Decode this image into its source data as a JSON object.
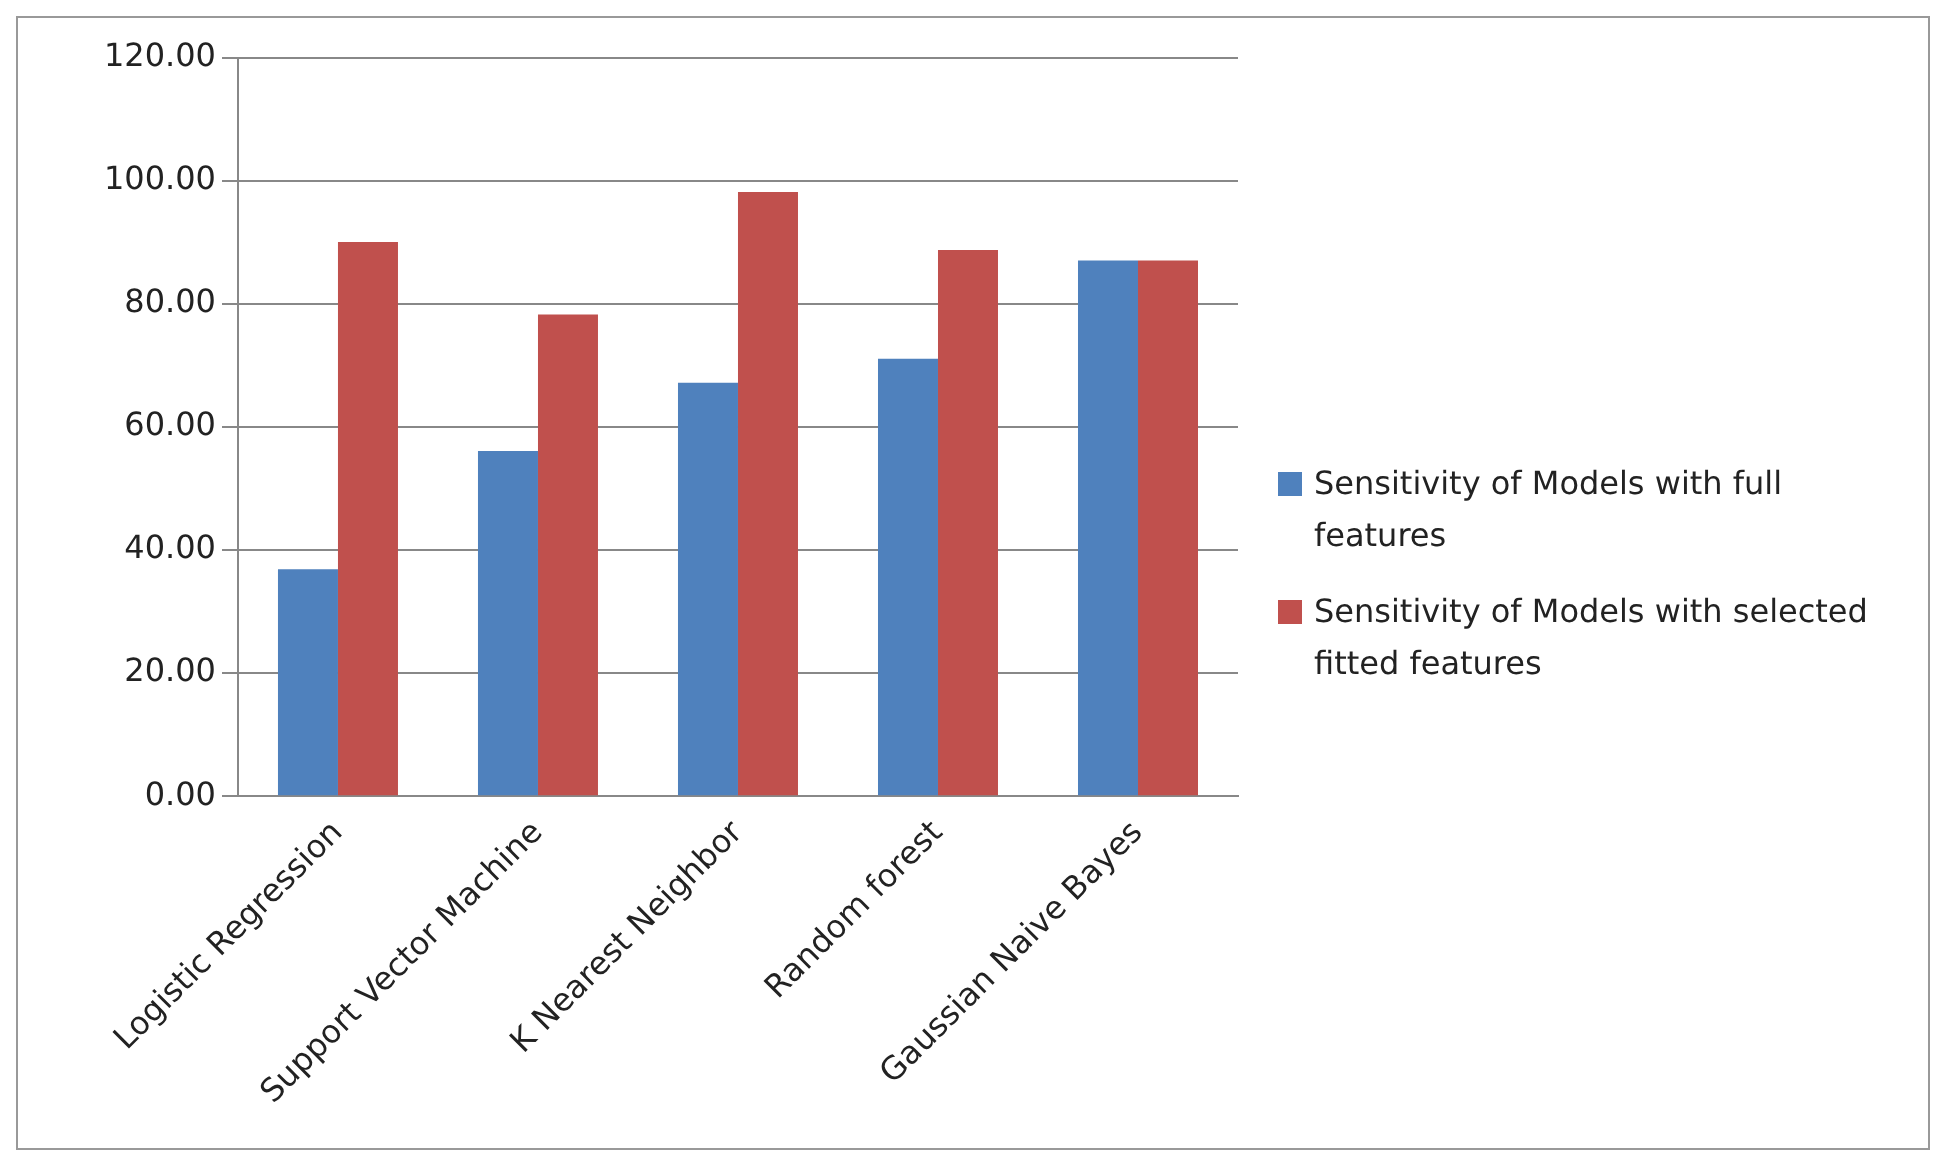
{
  "chart_data": {
    "type": "bar",
    "categories": [
      "Logistic Regression",
      "Support Vector Machine",
      "K Nearest Neighbor",
      "Random forest",
      "Gaussian Naive Bayes"
    ],
    "series": [
      {
        "name": "Sensitivity of Models with full features",
        "color": "#4f81bd",
        "values": [
          36.9,
          56.1,
          67.2,
          71.1,
          87.1
        ]
      },
      {
        "name": "Sensitivity of Models with selected fitted features",
        "color": "#c0504d",
        "values": [
          90.1,
          78.3,
          98.2,
          88.8,
          87.1
        ]
      }
    ],
    "ylim": [
      0,
      120
    ],
    "yticks": [
      {
        "value": 0,
        "label": "0.00"
      },
      {
        "value": 20,
        "label": "20.00"
      },
      {
        "value": 40,
        "label": "40.00"
      },
      {
        "value": 60,
        "label": "60.00"
      },
      {
        "value": 80,
        "label": "80.00"
      },
      {
        "value": 100,
        "label": "100.00"
      },
      {
        "value": 120,
        "label": "120.00"
      }
    ],
    "grid": "y",
    "legend": "right"
  }
}
